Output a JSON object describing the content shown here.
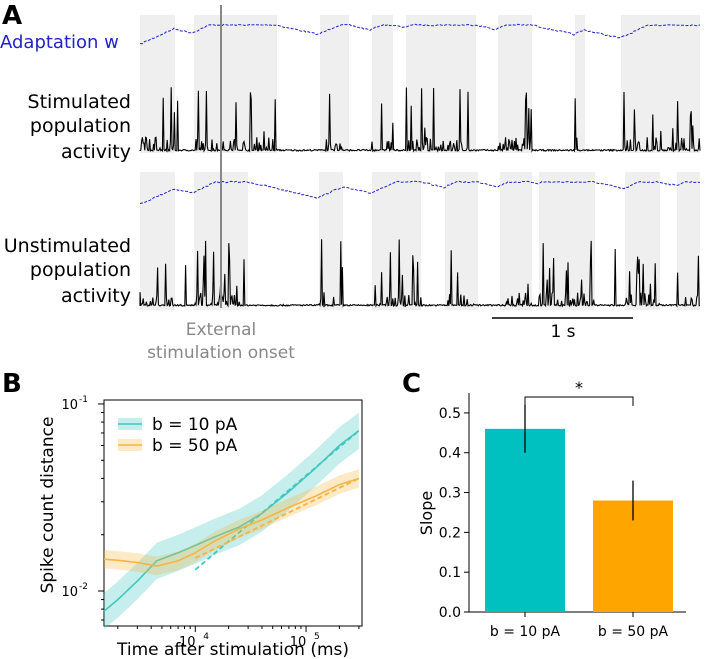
{
  "panels": {
    "a": "A",
    "b": "B",
    "c": "C"
  },
  "panel_a": {
    "adaptation_label": "Adaptation w",
    "stim_label": [
      "Stimulated",
      "population",
      "activity"
    ],
    "unstim_label": [
      "Unstimulated",
      "population",
      "activity"
    ],
    "onset_label": [
      "External",
      "stimulation onset"
    ],
    "scalebar_label": "1 s",
    "colors": {
      "adaptation": "#2222cc",
      "activity": "#000000",
      "shade": "#efefef",
      "onset": "#888888"
    }
  },
  "chart_data": [
    {
      "type": "line",
      "panel": "B",
      "xlabel": "Time after stimulation (ms)",
      "ylabel": "Spike count distance",
      "xscale": "log",
      "yscale": "log",
      "xticks": [
        "10^4",
        "10^5"
      ],
      "xtick_labels": [
        {
          "base": "10",
          "exp": "4"
        },
        {
          "base": "10",
          "exp": "5"
        }
      ],
      "ytick_labels": [
        {
          "base": "10",
          "exp": "-1"
        },
        {
          "base": "10",
          "exp": "-2"
        }
      ],
      "xlim": [
        1500,
        320000
      ],
      "ylim": [
        0.0065,
        0.105
      ],
      "legend": "top-left",
      "series": [
        {
          "name": "b = 10 pA",
          "color": "#40c8c0",
          "x": [
            1500,
            2000,
            3000,
            4500,
            7000,
            10000,
            15000,
            25000,
            40000,
            70000,
            120000,
            200000,
            300000
          ],
          "y": [
            0.0078,
            0.009,
            0.0113,
            0.0145,
            0.016,
            0.0175,
            0.0195,
            0.022,
            0.026,
            0.034,
            0.045,
            0.06,
            0.072
          ],
          "fit": {
            "x": [
              10000,
              300000
            ],
            "y": [
              0.013,
              0.072
            ]
          }
        },
        {
          "name": "b = 50 pA",
          "color": "#f5b541",
          "x": [
            1500,
            2000,
            3000,
            4500,
            7000,
            10000,
            15000,
            25000,
            40000,
            70000,
            120000,
            200000,
            300000
          ],
          "y": [
            0.0148,
            0.0146,
            0.0142,
            0.0136,
            0.0145,
            0.016,
            0.0185,
            0.0215,
            0.024,
            0.028,
            0.032,
            0.037,
            0.04
          ],
          "fit": {
            "x": [
              10000,
              300000
            ],
            "y": [
              0.015,
              0.04
            ]
          }
        }
      ]
    },
    {
      "type": "bar",
      "panel": "C",
      "ylabel": "Slope",
      "categories": [
        "b = 10 pA",
        "b = 50 pA"
      ],
      "values": [
        0.46,
        0.28
      ],
      "errors": [
        [
          0.4,
          0.52
        ],
        [
          0.23,
          0.33
        ]
      ],
      "colors": [
        "#00c0c0",
        "#ffa500"
      ],
      "ylim": [
        0,
        0.55
      ],
      "yticks": [
        "0.0",
        "0.1",
        "0.2",
        "0.3",
        "0.4",
        "0.5"
      ],
      "significance": "*"
    }
  ]
}
